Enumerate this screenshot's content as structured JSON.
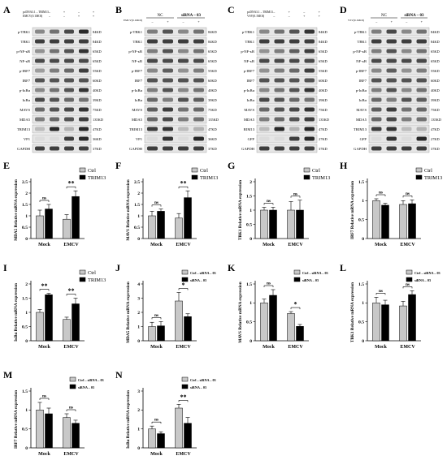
{
  "blots": [
    {
      "panel": "A",
      "header": {
        "line1": "pcDNA3.1 – TRIM13",
        "line2": "EMCV(0.1MOI)",
        "signs1": [
          "–",
          "+",
          "–",
          "+"
        ],
        "signs2": [
          "–",
          "–",
          "+",
          "+"
        ]
      },
      "rows": [
        {
          "label": "p-TBK1",
          "kd": "84KD",
          "bands": [
            0.45,
            0.55,
            0.75,
            0.9
          ]
        },
        {
          "label": "TBK1",
          "kd": "84KD",
          "bands": [
            0.8,
            0.8,
            0.8,
            0.8
          ]
        },
        {
          "label": "p-NF-κB",
          "kd": "65KD",
          "bands": [
            0.4,
            0.55,
            0.7,
            0.85
          ]
        },
        {
          "label": "NF-κB",
          "kd": "65KD",
          "bands": [
            0.75,
            0.75,
            0.75,
            0.75
          ]
        },
        {
          "label": "p-IRF7",
          "kd": "55KD",
          "bands": [
            0.35,
            0.5,
            0.6,
            0.8
          ]
        },
        {
          "label": "IRF7",
          "kd": "60KD",
          "bands": [
            0.7,
            0.7,
            0.7,
            0.7
          ]
        },
        {
          "label": "p-IκBα",
          "kd": "40KD",
          "bands": [
            0.45,
            0.55,
            0.7,
            0.85
          ]
        },
        {
          "label": "IκBα",
          "kd": "39KD",
          "bands": [
            0.75,
            0.7,
            0.6,
            0.55
          ]
        },
        {
          "label": "MAVS",
          "kd": "75KD",
          "bands": [
            0.6,
            0.7,
            0.75,
            0.85
          ]
        },
        {
          "label": "MDA5",
          "kd": "135KD",
          "bands": [
            0.5,
            0.6,
            0.7,
            0.8
          ]
        },
        {
          "label": "TRIM13",
          "kd": "47KD",
          "bands": [
            0.2,
            0.9,
            0.25,
            0.9
          ]
        },
        {
          "label": "VP1",
          "kd": "36KD",
          "bands": [
            0.05,
            0.05,
            0.8,
            0.9
          ]
        },
        {
          "label": "GAPDH",
          "kd": "37KD",
          "bands": [
            0.8,
            0.8,
            0.8,
            0.8
          ]
        }
      ]
    },
    {
      "panel": "B",
      "header": {
        "line1": "EMCV(0.1MOI)",
        "col1": "NC",
        "col2": "siRNA – 03",
        "signs": [
          "–",
          "+",
          "–",
          "+"
        ]
      },
      "rows": [
        {
          "label": "p-TBK1",
          "kd": "84KD",
          "bands": [
            0.5,
            0.7,
            0.45,
            0.55
          ]
        },
        {
          "label": "TBK1",
          "kd": "84KD",
          "bands": [
            0.8,
            0.8,
            0.8,
            0.8
          ]
        },
        {
          "label": "p-NF-κB",
          "kd": "65KD",
          "bands": [
            0.5,
            0.7,
            0.45,
            0.55
          ]
        },
        {
          "label": "NF-κB",
          "kd": "65KD",
          "bands": [
            0.75,
            0.75,
            0.75,
            0.75
          ]
        },
        {
          "label": "p-IRF7",
          "kd": "55KD",
          "bands": [
            0.45,
            0.65,
            0.4,
            0.5
          ]
        },
        {
          "label": "IRF7",
          "kd": "60KD",
          "bands": [
            0.7,
            0.7,
            0.7,
            0.7
          ]
        },
        {
          "label": "p-IκBα",
          "kd": "40KD",
          "bands": [
            0.5,
            0.7,
            0.45,
            0.55
          ]
        },
        {
          "label": "IκBα",
          "kd": "39KD",
          "bands": [
            0.6,
            0.5,
            0.7,
            0.65
          ]
        },
        {
          "label": "MAVS",
          "kd": "75KD",
          "bands": [
            0.65,
            0.8,
            0.55,
            0.6
          ]
        },
        {
          "label": "MDA5",
          "kd": "135KD",
          "bands": [
            0.6,
            0.75,
            0.5,
            0.55
          ]
        },
        {
          "label": "TRIM13",
          "kd": "47KD",
          "bands": [
            0.8,
            0.85,
            0.2,
            0.25
          ]
        },
        {
          "label": "VP1",
          "kd": "36KD",
          "bands": [
            0.05,
            0.85,
            0.05,
            0.9
          ]
        },
        {
          "label": "GAPDH",
          "kd": "37KD",
          "bands": [
            0.8,
            0.8,
            0.8,
            0.8
          ]
        }
      ]
    },
    {
      "panel": "C",
      "header": {
        "line1": "pcDNA3.1 – TRIM13",
        "line2": "VSV(0.1MOI)",
        "signs1": [
          "–",
          "+",
          "–",
          "+"
        ],
        "signs2": [
          "–",
          "–",
          "+",
          "+"
        ]
      },
      "rows": [
        {
          "label": "p-TBK1",
          "kd": "84KD",
          "bands": [
            0.45,
            0.55,
            0.7,
            0.85
          ]
        },
        {
          "label": "TBK1",
          "kd": "84KD",
          "bands": [
            0.8,
            0.8,
            0.8,
            0.8
          ]
        },
        {
          "label": "p-NF-κB",
          "kd": "65KD",
          "bands": [
            0.4,
            0.5,
            0.65,
            0.8
          ]
        },
        {
          "label": "NF-κB",
          "kd": "65KD",
          "bands": [
            0.75,
            0.75,
            0.75,
            0.75
          ]
        },
        {
          "label": "p-IRF7",
          "kd": "55KD",
          "bands": [
            0.4,
            0.5,
            0.6,
            0.8
          ]
        },
        {
          "label": "IRF7",
          "kd": "60KD",
          "bands": [
            0.7,
            0.7,
            0.7,
            0.7
          ]
        },
        {
          "label": "p-IκBα",
          "kd": "40KD",
          "bands": [
            0.45,
            0.55,
            0.7,
            0.85
          ]
        },
        {
          "label": "IκBα",
          "kd": "39KD",
          "bands": [
            0.75,
            0.7,
            0.6,
            0.55
          ]
        },
        {
          "label": "MAVS",
          "kd": "75KD",
          "bands": [
            0.6,
            0.7,
            0.75,
            0.85
          ]
        },
        {
          "label": "MDA5",
          "kd": "135KD",
          "bands": [
            0.5,
            0.6,
            0.7,
            0.8
          ]
        },
        {
          "label": "RIM13",
          "kd": "47KD",
          "bands": [
            0.2,
            0.9,
            0.25,
            0.9
          ]
        },
        {
          "label": "GFP",
          "kd": "27KD",
          "bands": [
            0.05,
            0.05,
            0.8,
            0.9
          ]
        },
        {
          "label": "GAPDH",
          "kd": "37KD",
          "bands": [
            0.8,
            0.8,
            0.8,
            0.8
          ]
        }
      ]
    },
    {
      "panel": "D",
      "header": {
        "line1": "VSV(0.1MOI)",
        "col1": "NC",
        "col2": "siRNA – 03",
        "signs": [
          "–",
          "+",
          "–",
          "+"
        ]
      },
      "rows": [
        {
          "label": "p-TBK1",
          "kd": "84KD",
          "bands": [
            0.5,
            0.75,
            0.45,
            0.55
          ]
        },
        {
          "label": "TBK1",
          "kd": "84KD",
          "bands": [
            0.8,
            0.8,
            0.8,
            0.8
          ]
        },
        {
          "label": "p-NF-κB",
          "kd": "65KD",
          "bands": [
            0.5,
            0.7,
            0.45,
            0.55
          ]
        },
        {
          "label": "NF-κB",
          "kd": "65KD",
          "bands": [
            0.75,
            0.75,
            0.75,
            0.75
          ]
        },
        {
          "label": "p-IRF7",
          "kd": "55KD",
          "bands": [
            0.45,
            0.65,
            0.4,
            0.5
          ]
        },
        {
          "label": "IRF7",
          "kd": "60KD",
          "bands": [
            0.7,
            0.7,
            0.7,
            0.7
          ]
        },
        {
          "label": "p-IκBα",
          "kd": "40KD",
          "bands": [
            0.5,
            0.7,
            0.45,
            0.55
          ]
        },
        {
          "label": "IκBα",
          "kd": "39KD",
          "bands": [
            0.6,
            0.5,
            0.7,
            0.65
          ]
        },
        {
          "label": "MAVS",
          "kd": "75KD",
          "bands": [
            0.65,
            0.8,
            0.55,
            0.6
          ]
        },
        {
          "label": "MDA5",
          "kd": "135KD",
          "bands": [
            0.6,
            0.75,
            0.5,
            0.55
          ]
        },
        {
          "label": "TRIM13",
          "kd": "47KD",
          "bands": [
            0.8,
            0.85,
            0.2,
            0.25
          ]
        },
        {
          "label": "GFP",
          "kd": "27KD",
          "bands": [
            0.05,
            0.85,
            0.05,
            0.9
          ]
        },
        {
          "label": "GAPDH",
          "kd": "37KD",
          "bands": [
            0.8,
            0.8,
            0.8,
            0.8
          ]
        }
      ]
    }
  ],
  "chart_data": [
    {
      "panel": "E",
      "type": "bar",
      "categories": [
        "Mock",
        "EMCV"
      ],
      "ylabel": "MDA5 Relative mRNA expression",
      "ylim": [
        0,
        2.5
      ],
      "yticks": [
        0,
        0.5,
        1,
        1.5,
        2,
        2.5
      ],
      "series": [
        {
          "name": "Ctrl",
          "values": [
            1.0,
            0.85
          ],
          "errors": [
            0.25,
            0.2
          ]
        },
        {
          "name": "TRIM13",
          "values": [
            1.3,
            1.85
          ],
          "errors": [
            0.2,
            0.25
          ]
        }
      ],
      "sig": [
        "ns",
        "**"
      ],
      "legend": "top-right"
    },
    {
      "panel": "F",
      "type": "bar",
      "categories": [
        "Mock",
        "EMCV"
      ],
      "ylabel": "MAVS Relative mRNA expression",
      "ylim": [
        0,
        2.5
      ],
      "yticks": [
        0,
        0.5,
        1,
        1.5,
        2,
        2.5
      ],
      "series": [
        {
          "name": "Ctrl",
          "values": [
            1.0,
            0.9
          ],
          "errors": [
            0.2,
            0.2
          ]
        },
        {
          "name": "TRIM13",
          "values": [
            1.2,
            1.8
          ],
          "errors": [
            0.1,
            0.3
          ]
        }
      ],
      "sig": [
        "ns",
        "**"
      ],
      "legend": "top-right"
    },
    {
      "panel": "G",
      "type": "bar",
      "categories": [
        "Mock",
        "EMCV"
      ],
      "ylabel": "TBK1 Relative mRNA expression",
      "ylim": [
        0,
        2.0
      ],
      "yticks": [
        0,
        0.5,
        1,
        1.5,
        2
      ],
      "series": [
        {
          "name": "Ctrl",
          "values": [
            1.0,
            1.0
          ],
          "errors": [
            0.1,
            0.3
          ]
        },
        {
          "name": "TRIM13",
          "values": [
            1.0,
            1.0
          ],
          "errors": [
            0.1,
            0.35
          ]
        }
      ],
      "sig": [
        "ns",
        "ns"
      ],
      "legend": "top-right"
    },
    {
      "panel": "H",
      "type": "bar",
      "categories": [
        "Mock",
        "EMCV"
      ],
      "ylabel": "IRF7 Relative mRNA expression",
      "ylim": [
        0,
        1.5
      ],
      "yticks": [
        0,
        0.5,
        1,
        1.5
      ],
      "series": [
        {
          "name": "Ctrl",
          "values": [
            1.0,
            0.9
          ],
          "errors": [
            0.05,
            0.1
          ]
        },
        {
          "name": "TRIM13",
          "values": [
            0.88,
            0.92
          ],
          "errors": [
            0.05,
            0.1
          ]
        }
      ],
      "sig": [
        "ns",
        "ns"
      ],
      "legend": "top-right"
    },
    {
      "panel": "I",
      "type": "bar",
      "categories": [
        "Mock",
        "EMCV"
      ],
      "ylabel": "IκBα Relative mRNA expression",
      "ylim": [
        0,
        2.0
      ],
      "yticks": [
        0,
        0.5,
        1,
        1.5,
        2
      ],
      "series": [
        {
          "name": "Ctrl",
          "values": [
            1.0,
            0.75
          ],
          "errors": [
            0.1,
            0.08
          ]
        },
        {
          "name": "TRIM13",
          "values": [
            1.62,
            1.3
          ],
          "errors": [
            0.05,
            0.2
          ]
        }
      ],
      "sig": [
        "**",
        "**"
      ],
      "legend": "top-right"
    },
    {
      "panel": "J",
      "type": "bar",
      "categories": [
        "Mock",
        "EMCV"
      ],
      "ylabel": "MDA5 Relative mRNA expression",
      "ylim": [
        0,
        4
      ],
      "yticks": [
        0,
        1,
        2,
        3,
        4
      ],
      "series": [
        {
          "name": "Ctrl – siRNA – 03",
          "values": [
            1.0,
            2.8
          ],
          "errors": [
            0.3,
            0.6
          ]
        },
        {
          "name": "siRNA – 03",
          "values": [
            1.05,
            1.7
          ],
          "errors": [
            0.3,
            0.2
          ]
        }
      ],
      "sig": [
        "ns",
        "*"
      ],
      "legend": "top-right"
    },
    {
      "panel": "K",
      "type": "bar",
      "categories": [
        "Mock",
        "EMCV"
      ],
      "ylabel": "MAVS Relative mRNA expression",
      "ylim": [
        0,
        1.5
      ],
      "yticks": [
        0,
        0.5,
        1,
        1.5
      ],
      "series": [
        {
          "name": "Ctrl – siRNA – 03",
          "values": [
            1.0,
            0.72
          ],
          "errors": [
            0.1,
            0.05
          ]
        },
        {
          "name": "siRNA – 03",
          "values": [
            1.2,
            0.38
          ],
          "errors": [
            0.15,
            0.05
          ]
        }
      ],
      "sig": [
        "ns",
        "*"
      ],
      "legend": "top-right"
    },
    {
      "panel": "L",
      "type": "bar",
      "categories": [
        "Mock",
        "EMCV"
      ],
      "ylabel": "TBK1 Relative mRNA expression",
      "ylim": [
        0,
        1.5
      ],
      "yticks": [
        0,
        0.5,
        1,
        1.5
      ],
      "series": [
        {
          "name": "Ctrl – siRNA – 03",
          "values": [
            1.0,
            0.92
          ],
          "errors": [
            0.15,
            0.12
          ]
        },
        {
          "name": "siRNA – 03",
          "values": [
            0.95,
            1.22
          ],
          "errors": [
            0.12,
            0.1
          ]
        }
      ],
      "sig": [
        "ns",
        "ns"
      ],
      "legend": "top-right"
    },
    {
      "panel": "M",
      "type": "bar",
      "categories": [
        "Mock",
        "EMCV"
      ],
      "ylabel": "IRF7 Relative mRNA expression",
      "ylim": [
        0,
        1.5
      ],
      "yticks": [
        0,
        0.5,
        1,
        1.5
      ],
      "series": [
        {
          "name": "Ctrl – siRNA – 03",
          "values": [
            1.0,
            0.8
          ],
          "errors": [
            0.2,
            0.1
          ]
        },
        {
          "name": "siRNA – 03",
          "values": [
            0.9,
            0.65
          ],
          "errors": [
            0.15,
            0.08
          ]
        }
      ],
      "sig": [
        "ns",
        "ns"
      ],
      "legend": "top-right"
    },
    {
      "panel": "N",
      "type": "bar",
      "categories": [
        "Mock",
        "EMCV"
      ],
      "ylabel": "IκBα Relative mRNA expression",
      "ylim": [
        0,
        3
      ],
      "yticks": [
        0,
        1,
        2,
        3
      ],
      "series": [
        {
          "name": "Ctrl – siRNA – 03",
          "values": [
            1.0,
            2.1
          ],
          "errors": [
            0.15,
            0.2
          ]
        },
        {
          "name": "siRNA – 03",
          "values": [
            0.75,
            1.3
          ],
          "errors": [
            0.1,
            0.3
          ]
        }
      ],
      "sig": [
        "ns",
        "**"
      ],
      "legend": "top-right"
    }
  ],
  "colors": {
    "ctrl": "#c8c8c8",
    "treat": "#000000",
    "axis": "#000000"
  }
}
